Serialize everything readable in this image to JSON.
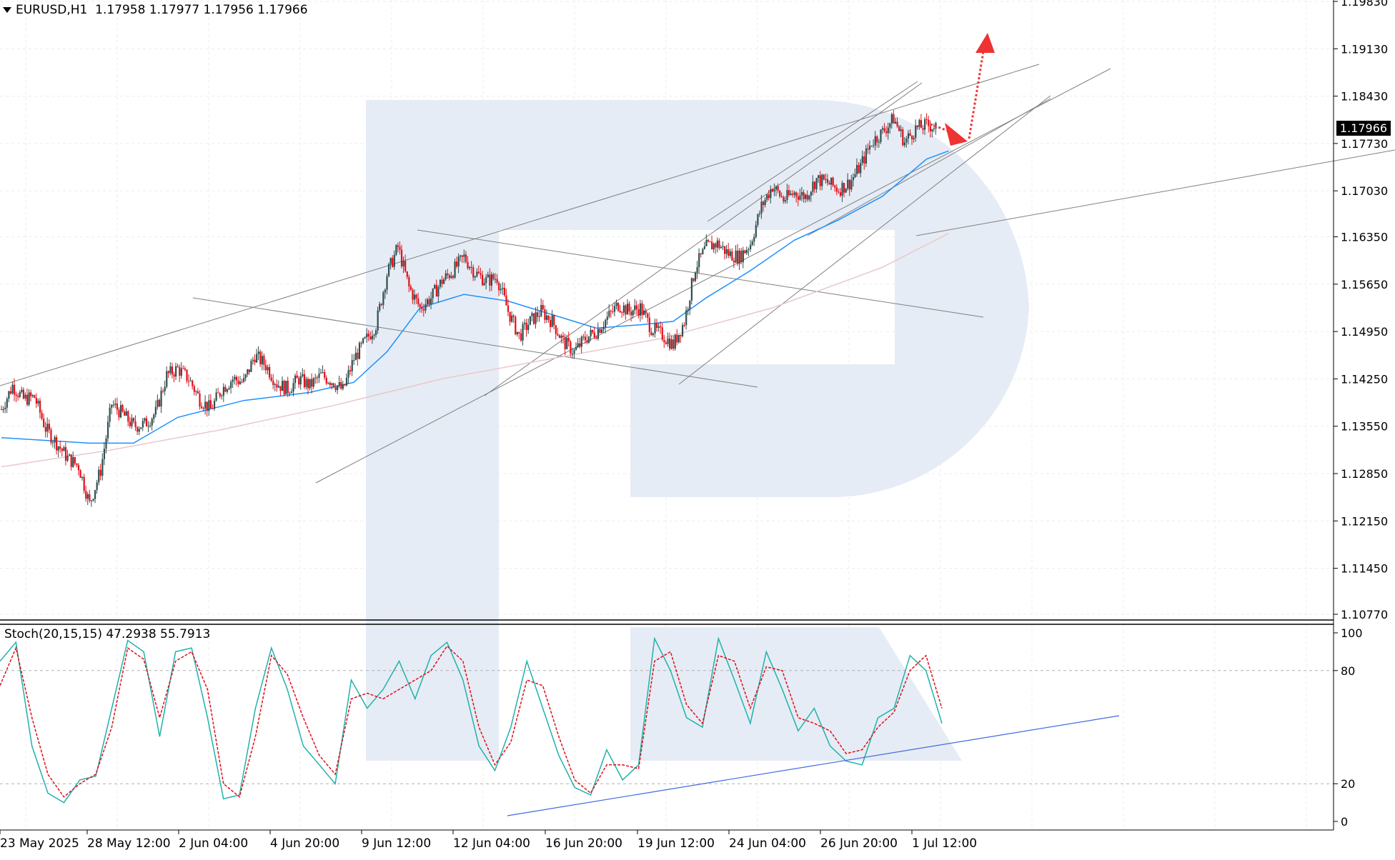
{
  "symbol_header": {
    "symbol": "EURUSD,H1",
    "ohlc": "1.17958 1.17977 1.17956 1.17966"
  },
  "current_price_label": "1.17966",
  "stochastic": {
    "label": "Stoch(20,15,15) 47.2938 55.7913",
    "levels": [
      100,
      80,
      20,
      0
    ]
  },
  "colors": {
    "bull_candle": "#2f4f4f",
    "bear_candle": "#e0101a",
    "ma_fast": "#1e90ff",
    "ma_slow": "#e8c8c8",
    "trendline": "#808080",
    "stoch_main": "#20b2aa",
    "stoch_signal": "#e0101a",
    "stoch_trendline": "#4169e1",
    "forecast_arrow": "#ee3333",
    "watermark": "#e6ecf5"
  },
  "chart_data": {
    "type": "candlestick",
    "price_axis_ticks": [
      "1.19830",
      "1.19130",
      "1.18430",
      "1.17730",
      "1.17030",
      "1.16350",
      "1.15650",
      "1.14950",
      "1.14250",
      "1.13550",
      "1.12850",
      "1.12150",
      "1.11450",
      "1.10770"
    ],
    "ylim": [
      1.1077,
      1.1983
    ],
    "time_axis_labels": [
      "23 May 2025",
      "28 May 12:00",
      "2 Jun 04:00",
      "4 Jun 20:00",
      "9 Jun 12:00",
      "12 Jun 04:00",
      "16 Jun 20:00",
      "19 Jun 12:00",
      "24 Jun 04:00",
      "26 Jun 20:00",
      "1 Jul 12:00"
    ],
    "close_path": [
      [
        0,
        1.138
      ],
      [
        1,
        1.1415
      ],
      [
        2,
        1.1395
      ],
      [
        3,
        1.1398
      ],
      [
        4,
        1.1352
      ],
      [
        5,
        1.133
      ],
      [
        6,
        1.1308
      ],
      [
        7,
        1.1296
      ],
      [
        8,
        1.124
      ],
      [
        9,
        1.129
      ],
      [
        10,
        1.1388
      ],
      [
        11,
        1.1373
      ],
      [
        12,
        1.1355
      ],
      [
        13,
        1.1358
      ],
      [
        14,
        1.1375
      ],
      [
        15,
        1.143
      ],
      [
        16,
        1.144
      ],
      [
        17,
        1.1425
      ],
      [
        18,
        1.1395
      ],
      [
        19,
        1.138
      ],
      [
        20,
        1.141
      ],
      [
        21,
        1.1425
      ],
      [
        22,
        1.142
      ],
      [
        23,
        1.146
      ],
      [
        24,
        1.1445
      ],
      [
        25,
        1.1418
      ],
      [
        26,
        1.141
      ],
      [
        27,
        1.1425
      ],
      [
        28,
        1.1415
      ],
      [
        29,
        1.143
      ],
      [
        30,
        1.1422
      ],
      [
        31,
        1.1408
      ],
      [
        32,
        1.1455
      ],
      [
        33,
        1.148
      ],
      [
        34,
        1.1505
      ],
      [
        35,
        1.158
      ],
      [
        36,
        1.162
      ],
      [
        37,
        1.156
      ],
      [
        38,
        1.153
      ],
      [
        39,
        1.1545
      ],
      [
        40,
        1.157
      ],
      [
        41,
        1.1585
      ],
      [
        42,
        1.1605
      ],
      [
        43,
        1.1582
      ],
      [
        44,
        1.157
      ],
      [
        45,
        1.1575
      ],
      [
        46,
        1.1525
      ],
      [
        47,
        1.1488
      ],
      [
        48,
        1.151
      ],
      [
        49,
        1.1525
      ],
      [
        50,
        1.151
      ],
      [
        51,
        1.148
      ],
      [
        52,
        1.1465
      ],
      [
        53,
        1.1485
      ],
      [
        54,
        1.1495
      ],
      [
        55,
        1.1515
      ],
      [
        56,
        1.1535
      ],
      [
        57,
        1.1525
      ],
      [
        58,
        1.153
      ],
      [
        59,
        1.15
      ],
      [
        60,
        1.149
      ],
      [
        61,
        1.1475
      ],
      [
        62,
        1.151
      ],
      [
        63,
        1.159
      ],
      [
        64,
        1.162
      ],
      [
        65,
        1.1625
      ],
      [
        66,
        1.161
      ],
      [
        67,
        1.1605
      ],
      [
        68,
        1.1625
      ],
      [
        69,
        1.168
      ],
      [
        70,
        1.171
      ],
      [
        71,
        1.169
      ],
      [
        72,
        1.17
      ],
      [
        73,
        1.1695
      ],
      [
        74,
        1.172
      ],
      [
        75,
        1.1715
      ],
      [
        76,
        1.1705
      ],
      [
        77,
        1.1715
      ],
      [
        78,
        1.174
      ],
      [
        79,
        1.1775
      ],
      [
        80,
        1.179
      ],
      [
        81,
        1.181
      ],
      [
        82,
        1.1775
      ],
      [
        83,
        1.1795
      ],
      [
        84,
        1.18
      ],
      [
        85,
        1.1797
      ]
    ],
    "ma_fast": [
      [
        0,
        1.1338
      ],
      [
        8,
        1.133
      ],
      [
        12,
        1.133
      ],
      [
        16,
        1.1368
      ],
      [
        22,
        1.1393
      ],
      [
        28,
        1.1405
      ],
      [
        32,
        1.142
      ],
      [
        35,
        1.1465
      ],
      [
        38,
        1.153
      ],
      [
        42,
        1.155
      ],
      [
        46,
        1.154
      ],
      [
        50,
        1.152
      ],
      [
        54,
        1.15
      ],
      [
        58,
        1.1505
      ],
      [
        61,
        1.151
      ],
      [
        64,
        1.1545
      ],
      [
        68,
        1.1585
      ],
      [
        72,
        1.163
      ],
      [
        76,
        1.166
      ],
      [
        80,
        1.1695
      ],
      [
        84,
        1.175
      ],
      [
        86,
        1.1762
      ]
    ],
    "ma_slow": [
      [
        0,
        1.1295
      ],
      [
        10,
        1.132
      ],
      [
        20,
        1.135
      ],
      [
        30,
        1.1385
      ],
      [
        40,
        1.1425
      ],
      [
        50,
        1.1455
      ],
      [
        60,
        1.1485
      ],
      [
        70,
        1.153
      ],
      [
        80,
        1.159
      ],
      [
        86,
        1.164
      ]
    ],
    "stoch_main": [
      [
        0,
        85
      ],
      [
        1,
        95
      ],
      [
        2,
        40
      ],
      [
        3,
        15
      ],
      [
        4,
        10
      ],
      [
        5,
        22
      ],
      [
        6,
        24
      ],
      [
        7,
        60
      ],
      [
        8,
        96
      ],
      [
        9,
        90
      ],
      [
        10,
        45
      ],
      [
        11,
        90
      ],
      [
        12,
        92
      ],
      [
        13,
        55
      ],
      [
        14,
        12
      ],
      [
        15,
        14
      ],
      [
        16,
        60
      ],
      [
        17,
        92
      ],
      [
        18,
        70
      ],
      [
        19,
        40
      ],
      [
        20,
        30
      ],
      [
        21,
        20
      ],
      [
        22,
        75
      ],
      [
        23,
        60
      ],
      [
        24,
        70
      ],
      [
        25,
        85
      ],
      [
        26,
        65
      ],
      [
        27,
        88
      ],
      [
        28,
        95
      ],
      [
        29,
        75
      ],
      [
        30,
        40
      ],
      [
        31,
        27
      ],
      [
        32,
        50
      ],
      [
        33,
        85
      ],
      [
        34,
        60
      ],
      [
        35,
        35
      ],
      [
        36,
        18
      ],
      [
        37,
        14
      ],
      [
        38,
        38
      ],
      [
        39,
        22
      ],
      [
        40,
        30
      ],
      [
        41,
        97
      ],
      [
        42,
        80
      ],
      [
        43,
        55
      ],
      [
        44,
        50
      ],
      [
        45,
        97
      ],
      [
        46,
        75
      ],
      [
        47,
        52
      ],
      [
        48,
        90
      ],
      [
        49,
        70
      ],
      [
        50,
        48
      ],
      [
        51,
        60
      ],
      [
        52,
        40
      ],
      [
        53,
        32
      ],
      [
        54,
        30
      ],
      [
        55,
        55
      ],
      [
        56,
        60
      ],
      [
        57,
        88
      ],
      [
        58,
        80
      ],
      [
        59,
        52
      ]
    ],
    "stoch_signal": [
      [
        0,
        72
      ],
      [
        1,
        92
      ],
      [
        2,
        55
      ],
      [
        3,
        25
      ],
      [
        4,
        13
      ],
      [
        5,
        20
      ],
      [
        6,
        25
      ],
      [
        7,
        50
      ],
      [
        8,
        92
      ],
      [
        9,
        86
      ],
      [
        10,
        55
      ],
      [
        11,
        85
      ],
      [
        12,
        90
      ],
      [
        13,
        70
      ],
      [
        14,
        20
      ],
      [
        15,
        13
      ],
      [
        16,
        45
      ],
      [
        17,
        88
      ],
      [
        18,
        78
      ],
      [
        19,
        55
      ],
      [
        20,
        35
      ],
      [
        21,
        25
      ],
      [
        22,
        65
      ],
      [
        23,
        68
      ],
      [
        24,
        65
      ],
      [
        25,
        70
      ],
      [
        26,
        75
      ],
      [
        27,
        80
      ],
      [
        28,
        93
      ],
      [
        29,
        85
      ],
      [
        30,
        50
      ],
      [
        31,
        30
      ],
      [
        32,
        42
      ],
      [
        33,
        75
      ],
      [
        34,
        72
      ],
      [
        35,
        45
      ],
      [
        36,
        22
      ],
      [
        37,
        15
      ],
      [
        38,
        30
      ],
      [
        39,
        30
      ],
      [
        40,
        28
      ],
      [
        41,
        85
      ],
      [
        42,
        90
      ],
      [
        43,
        62
      ],
      [
        44,
        52
      ],
      [
        45,
        88
      ],
      [
        46,
        85
      ],
      [
        47,
        60
      ],
      [
        48,
        82
      ],
      [
        49,
        80
      ],
      [
        50,
        55
      ],
      [
        51,
        52
      ],
      [
        52,
        48
      ],
      [
        53,
        36
      ],
      [
        54,
        38
      ],
      [
        55,
        50
      ],
      [
        56,
        58
      ],
      [
        57,
        80
      ],
      [
        58,
        88
      ],
      [
        59,
        60
      ]
    ]
  }
}
